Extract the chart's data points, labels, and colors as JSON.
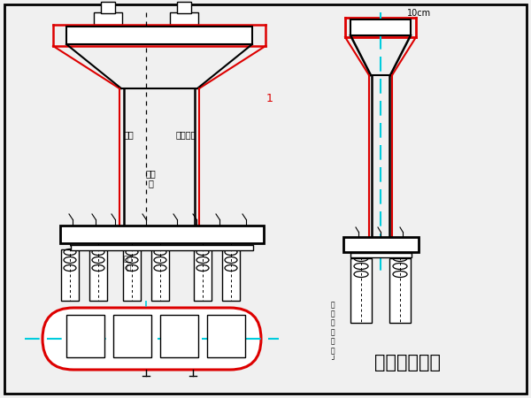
{
  "bg_color": "#f0f0f0",
  "red": "#dd0000",
  "cyan": "#00ccdd",
  "black": "#000000",
  "gray": "#666666",
  "light_gray": "#aaaaaa",
  "white": "#ffffff",
  "title_text": "综合接地系统",
  "label_10cm": "10cm",
  "label_gangjin": "钢筋",
  "label_jiedian": "铁路接地",
  "label_lianjiejin": "连接\n筋",
  "label_right_text": "钢\n筋\n接\n地\n连\n接\n┘"
}
